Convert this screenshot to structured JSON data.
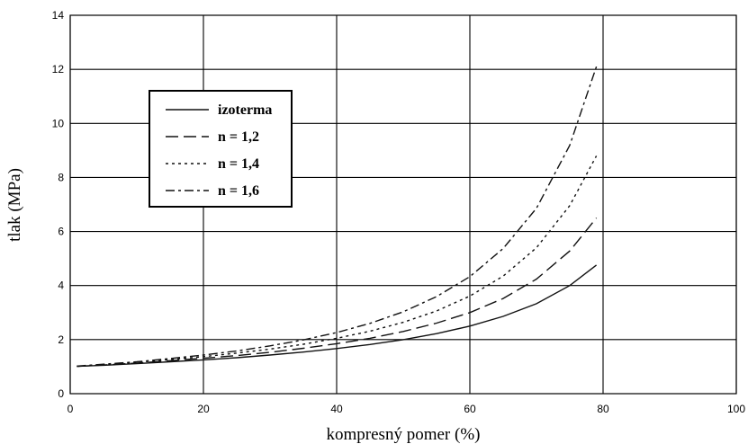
{
  "chart_data": {
    "type": "line",
    "xlabel": "kompresný pomer (%)",
    "ylabel": "tlak (MPa)",
    "xlim": [
      0,
      100
    ],
    "ylim": [
      0,
      14
    ],
    "xticks": [
      "0",
      "20",
      "40",
      "60",
      "80",
      "100"
    ],
    "yticks": [
      "0",
      "2",
      "4",
      "6",
      "8",
      "10",
      "12",
      "14"
    ],
    "grid": true,
    "legend": {
      "placement": "upper-left"
    },
    "series": [
      {
        "name": "izoterma",
        "style": "solid",
        "x": [
          1,
          5,
          10,
          15,
          20,
          25,
          30,
          35,
          40,
          45,
          50,
          55,
          60,
          65,
          70,
          75,
          79
        ],
        "y": [
          1.01,
          1.05,
          1.11,
          1.18,
          1.25,
          1.33,
          1.43,
          1.54,
          1.67,
          1.82,
          2.0,
          2.22,
          2.5,
          2.86,
          3.33,
          4.0,
          4.76
        ]
      },
      {
        "name": "n = 1,2",
        "style": "dashed",
        "x": [
          1,
          5,
          10,
          15,
          20,
          25,
          30,
          35,
          40,
          45,
          50,
          55,
          60,
          65,
          70,
          75,
          79
        ],
        "y": [
          1.01,
          1.06,
          1.13,
          1.22,
          1.31,
          1.41,
          1.53,
          1.68,
          1.85,
          2.05,
          2.3,
          2.61,
          3.0,
          3.52,
          4.24,
          5.28,
          6.5
        ]
      },
      {
        "name": "n = 1,4",
        "style": "dotted",
        "x": [
          1,
          5,
          10,
          15,
          20,
          25,
          30,
          35,
          40,
          45,
          50,
          55,
          60,
          65,
          70,
          75,
          79
        ],
        "y": [
          1.01,
          1.07,
          1.16,
          1.26,
          1.37,
          1.5,
          1.65,
          1.83,
          2.05,
          2.31,
          2.64,
          3.06,
          3.61,
          4.35,
          5.4,
          6.96,
          8.8
        ]
      },
      {
        "name": "n = 1,6",
        "style": "dash-dot",
        "x": [
          1,
          5,
          10,
          15,
          20,
          25,
          30,
          35,
          40,
          45,
          50,
          55,
          60,
          65,
          70,
          75,
          79
        ],
        "y": [
          1.02,
          1.09,
          1.18,
          1.3,
          1.43,
          1.58,
          1.77,
          1.99,
          2.26,
          2.6,
          3.03,
          3.59,
          4.33,
          5.37,
          6.86,
          9.19,
          12.1
        ]
      }
    ]
  }
}
